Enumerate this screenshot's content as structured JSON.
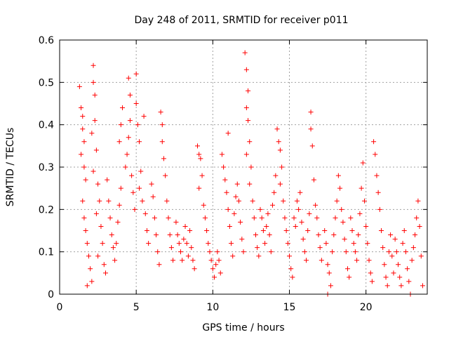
{
  "chart_data": {
    "type": "scatter",
    "title": "Day 248 of 2011, SRMTID for receiver p011",
    "xlabel": "GPS time / hours",
    "ylabel": "SRMTID / TECUs",
    "xlim": [
      0,
      24
    ],
    "ylim": [
      0,
      0.6
    ],
    "xticks": [
      0,
      5,
      10,
      15,
      20
    ],
    "yticks": [
      0,
      0.1,
      0.2,
      0.3,
      0.4,
      0.5,
      0.6
    ],
    "ytick_labels": [
      "0",
      "0.1",
      "0.2",
      "0.3",
      "0.4",
      "0.5",
      "0.6"
    ],
    "grid": true,
    "marker": "+",
    "series": [
      {
        "name": "SRMTID",
        "color": "#ff0000",
        "points": [
          [
            1.3,
            0.49
          ],
          [
            1.4,
            0.44
          ],
          [
            1.5,
            0.42
          ],
          [
            1.5,
            0.39
          ],
          [
            1.6,
            0.36
          ],
          [
            1.4,
            0.33
          ],
          [
            1.6,
            0.3
          ],
          [
            1.7,
            0.27
          ],
          [
            1.5,
            0.22
          ],
          [
            1.6,
            0.18
          ],
          [
            1.7,
            0.15
          ],
          [
            1.8,
            0.12
          ],
          [
            1.9,
            0.09
          ],
          [
            2.0,
            0.06
          ],
          [
            2.1,
            0.03
          ],
          [
            1.8,
            0.02
          ],
          [
            2.2,
            0.54
          ],
          [
            2.2,
            0.5
          ],
          [
            2.3,
            0.47
          ],
          [
            2.3,
            0.41
          ],
          [
            2.1,
            0.38
          ],
          [
            2.4,
            0.34
          ],
          [
            2.2,
            0.29
          ],
          [
            2.5,
            0.26
          ],
          [
            2.6,
            0.22
          ],
          [
            2.4,
            0.19
          ],
          [
            2.7,
            0.16
          ],
          [
            2.8,
            0.12
          ],
          [
            2.5,
            0.09
          ],
          [
            2.9,
            0.07
          ],
          [
            3.0,
            0.05
          ],
          [
            3.1,
            0.27
          ],
          [
            3.2,
            0.22
          ],
          [
            3.3,
            0.18
          ],
          [
            3.4,
            0.14
          ],
          [
            3.5,
            0.11
          ],
          [
            3.6,
            0.08
          ],
          [
            3.7,
            0.12
          ],
          [
            3.8,
            0.17
          ],
          [
            3.9,
            0.21
          ],
          [
            4.0,
            0.25
          ],
          [
            3.9,
            0.36
          ],
          [
            4.0,
            0.4
          ],
          [
            4.1,
            0.44
          ],
          [
            4.3,
            0.3
          ],
          [
            4.4,
            0.33
          ],
          [
            4.5,
            0.37
          ],
          [
            4.6,
            0.41
          ],
          [
            4.6,
            0.47
          ],
          [
            4.5,
            0.51
          ],
          [
            4.7,
            0.28
          ],
          [
            4.8,
            0.24
          ],
          [
            4.9,
            0.2
          ],
          [
            5.0,
            0.52
          ],
          [
            5.0,
            0.45
          ],
          [
            5.1,
            0.4
          ],
          [
            5.2,
            0.36
          ],
          [
            5.3,
            0.29
          ],
          [
            5.2,
            0.25
          ],
          [
            5.4,
            0.22
          ],
          [
            5.5,
            0.42
          ],
          [
            5.6,
            0.19
          ],
          [
            5.7,
            0.15
          ],
          [
            5.8,
            0.12
          ],
          [
            6.0,
            0.26
          ],
          [
            6.1,
            0.23
          ],
          [
            6.2,
            0.18
          ],
          [
            6.3,
            0.14
          ],
          [
            6.4,
            0.1
          ],
          [
            6.5,
            0.07
          ],
          [
            6.6,
            0.43
          ],
          [
            6.7,
            0.4
          ],
          [
            6.7,
            0.36
          ],
          [
            6.8,
            0.32
          ],
          [
            6.9,
            0.28
          ],
          [
            7.0,
            0.22
          ],
          [
            7.1,
            0.18
          ],
          [
            7.2,
            0.14
          ],
          [
            7.3,
            0.11
          ],
          [
            7.4,
            0.08
          ],
          [
            7.6,
            0.17
          ],
          [
            7.7,
            0.14
          ],
          [
            7.8,
            0.12
          ],
          [
            7.9,
            0.1
          ],
          [
            8.0,
            0.08
          ],
          [
            8.1,
            0.13
          ],
          [
            8.2,
            0.16
          ],
          [
            8.3,
            0.12
          ],
          [
            8.4,
            0.09
          ],
          [
            8.5,
            0.15
          ],
          [
            8.6,
            0.11
          ],
          [
            8.7,
            0.08
          ],
          [
            8.8,
            0.06
          ],
          [
            9.0,
            0.35
          ],
          [
            9.1,
            0.33
          ],
          [
            9.2,
            0.32
          ],
          [
            9.3,
            0.28
          ],
          [
            9.1,
            0.25
          ],
          [
            9.4,
            0.21
          ],
          [
            9.5,
            0.18
          ],
          [
            9.6,
            0.15
          ],
          [
            9.7,
            0.12
          ],
          [
            9.8,
            0.1
          ],
          [
            9.9,
            0.08
          ],
          [
            10.0,
            0.06
          ],
          [
            10.1,
            0.04
          ],
          [
            10.2,
            0.07
          ],
          [
            10.3,
            0.1
          ],
          [
            10.4,
            0.08
          ],
          [
            10.5,
            0.05
          ],
          [
            10.6,
            0.33
          ],
          [
            10.7,
            0.3
          ],
          [
            10.8,
            0.27
          ],
          [
            10.9,
            0.24
          ],
          [
            11.0,
            0.38
          ],
          [
            11.0,
            0.2
          ],
          [
            11.1,
            0.16
          ],
          [
            11.2,
            0.12
          ],
          [
            11.3,
            0.09
          ],
          [
            11.4,
            0.19
          ],
          [
            11.5,
            0.23
          ],
          [
            11.6,
            0.26
          ],
          [
            11.7,
            0.22
          ],
          [
            11.8,
            0.17
          ],
          [
            11.9,
            0.13
          ],
          [
            12.0,
            0.1
          ],
          [
            12.1,
            0.57
          ],
          [
            12.2,
            0.53
          ],
          [
            12.3,
            0.48
          ],
          [
            12.2,
            0.44
          ],
          [
            12.3,
            0.41
          ],
          [
            12.4,
            0.36
          ],
          [
            12.2,
            0.33
          ],
          [
            12.5,
            0.3
          ],
          [
            12.4,
            0.26
          ],
          [
            12.6,
            0.22
          ],
          [
            12.7,
            0.18
          ],
          [
            12.8,
            0.14
          ],
          [
            12.9,
            0.11
          ],
          [
            13.0,
            0.09
          ],
          [
            13.1,
            0.2
          ],
          [
            13.2,
            0.18
          ],
          [
            13.3,
            0.15
          ],
          [
            13.4,
            0.12
          ],
          [
            13.5,
            0.16
          ],
          [
            13.6,
            0.19
          ],
          [
            13.7,
            0.14
          ],
          [
            13.8,
            0.1
          ],
          [
            13.9,
            0.21
          ],
          [
            14.0,
            0.24
          ],
          [
            14.1,
            0.28
          ],
          [
            14.2,
            0.39
          ],
          [
            14.3,
            0.36
          ],
          [
            14.4,
            0.34
          ],
          [
            14.5,
            0.3
          ],
          [
            14.4,
            0.26
          ],
          [
            14.6,
            0.22
          ],
          [
            14.7,
            0.18
          ],
          [
            14.8,
            0.15
          ],
          [
            14.9,
            0.12
          ],
          [
            15.0,
            0.09
          ],
          [
            15.1,
            0.06
          ],
          [
            15.2,
            0.04
          ],
          [
            15.3,
            0.18
          ],
          [
            15.4,
            0.16
          ],
          [
            15.5,
            0.22
          ],
          [
            15.6,
            0.2
          ],
          [
            15.7,
            0.24
          ],
          [
            15.8,
            0.17
          ],
          [
            15.9,
            0.13
          ],
          [
            16.0,
            0.1
          ],
          [
            16.1,
            0.08
          ],
          [
            16.2,
            0.15
          ],
          [
            16.3,
            0.19
          ],
          [
            16.4,
            0.43
          ],
          [
            16.4,
            0.39
          ],
          [
            16.5,
            0.35
          ],
          [
            16.6,
            0.27
          ],
          [
            16.7,
            0.21
          ],
          [
            16.8,
            0.18
          ],
          [
            16.9,
            0.14
          ],
          [
            17.0,
            0.11
          ],
          [
            17.1,
            0.08
          ],
          [
            17.3,
            0.15
          ],
          [
            17.4,
            0.12
          ],
          [
            17.5,
            0.07
          ],
          [
            17.6,
            0.05
          ],
          [
            17.5,
            0.0
          ],
          [
            17.7,
            0.02
          ],
          [
            17.8,
            0.1
          ],
          [
            17.9,
            0.14
          ],
          [
            18.0,
            0.18
          ],
          [
            18.1,
            0.22
          ],
          [
            18.2,
            0.28
          ],
          [
            18.3,
            0.25
          ],
          [
            18.4,
            0.2
          ],
          [
            18.5,
            0.17
          ],
          [
            18.6,
            0.13
          ],
          [
            18.7,
            0.1
          ],
          [
            18.8,
            0.06
          ],
          [
            18.9,
            0.04
          ],
          [
            19.0,
            0.18
          ],
          [
            19.1,
            0.15
          ],
          [
            19.2,
            0.12
          ],
          [
            19.3,
            0.1
          ],
          [
            19.4,
            0.08
          ],
          [
            19.5,
            0.14
          ],
          [
            19.6,
            0.19
          ],
          [
            19.7,
            0.25
          ],
          [
            19.8,
            0.31
          ],
          [
            19.9,
            0.22
          ],
          [
            20.0,
            0.16
          ],
          [
            20.1,
            0.12
          ],
          [
            20.2,
            0.08
          ],
          [
            20.3,
            0.05
          ],
          [
            20.4,
            0.03
          ],
          [
            20.5,
            0.36
          ],
          [
            20.6,
            0.33
          ],
          [
            20.7,
            0.28
          ],
          [
            20.8,
            0.24
          ],
          [
            20.9,
            0.2
          ],
          [
            21.0,
            0.15
          ],
          [
            21.1,
            0.11
          ],
          [
            21.2,
            0.07
          ],
          [
            21.3,
            0.04
          ],
          [
            21.4,
            0.02
          ],
          [
            21.5,
            0.1
          ],
          [
            21.6,
            0.14
          ],
          [
            21.7,
            0.09
          ],
          [
            21.8,
            0.05
          ],
          [
            21.9,
            0.13
          ],
          [
            22.0,
            0.1
          ],
          [
            22.1,
            0.07
          ],
          [
            22.2,
            0.04
          ],
          [
            22.3,
            0.02
          ],
          [
            22.4,
            0.12
          ],
          [
            22.5,
            0.15
          ],
          [
            22.6,
            0.1
          ],
          [
            22.7,
            0.06
          ],
          [
            22.8,
            0.03
          ],
          [
            22.9,
            0.0
          ],
          [
            23.0,
            0.08
          ],
          [
            23.1,
            0.11
          ],
          [
            23.2,
            0.14
          ],
          [
            23.3,
            0.18
          ],
          [
            23.4,
            0.22
          ],
          [
            23.5,
            0.16
          ],
          [
            23.6,
            0.09
          ],
          [
            23.7,
            0.02
          ]
        ]
      }
    ]
  }
}
